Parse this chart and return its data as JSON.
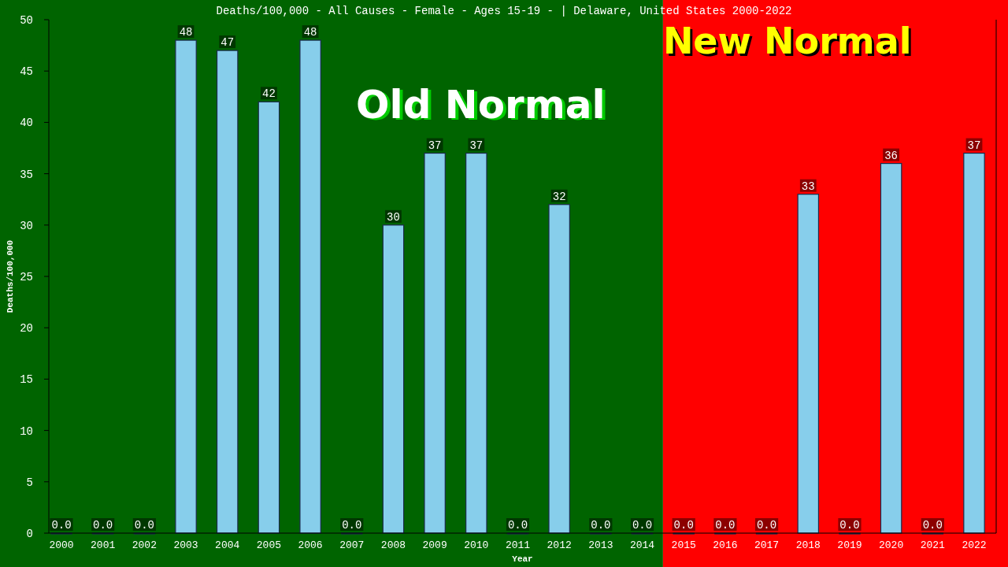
{
  "chart_data": {
    "type": "bar",
    "title": "Deaths/100,000 - All Causes - Female - Ages 15-19 -  | Delaware, United States 2000-2022",
    "xlabel": "Year",
    "ylabel": "Deaths/100,000",
    "categories": [
      "2000",
      "2001",
      "2002",
      "2003",
      "2004",
      "2005",
      "2006",
      "2007",
      "2008",
      "2009",
      "2010",
      "2011",
      "2012",
      "2013",
      "2014",
      "2015",
      "2016",
      "2017",
      "2018",
      "2019",
      "2020",
      "2021",
      "2022"
    ],
    "values": [
      0,
      0,
      0,
      48,
      47,
      42,
      48,
      0,
      30,
      37,
      37,
      0,
      32,
      0,
      0,
      0,
      0,
      0,
      33,
      0,
      36,
      0,
      37
    ],
    "value_labels": [
      "0.0",
      "0.0",
      "0.0",
      "48",
      "47",
      "42",
      "48",
      "0.0",
      "30",
      "37",
      "37",
      "0.0",
      "32",
      "0.0",
      "0.0",
      "0.0",
      "0.0",
      "0.0",
      "33",
      "0.0",
      "36",
      "0.0",
      "37"
    ],
    "color": "#87ceeb",
    "ylim": [
      0,
      50
    ],
    "yticks": [
      0,
      5,
      10,
      15,
      20,
      25,
      30,
      35,
      40,
      45,
      50
    ],
    "grid": false,
    "bands": [
      {
        "axis": "x",
        "from": "2000",
        "to": "2014",
        "label": "Old Normal",
        "color": "#006400"
      },
      {
        "axis": "x",
        "from": "2015",
        "to": "2022",
        "label": "New Normal",
        "color": "#ff0000"
      }
    ]
  }
}
